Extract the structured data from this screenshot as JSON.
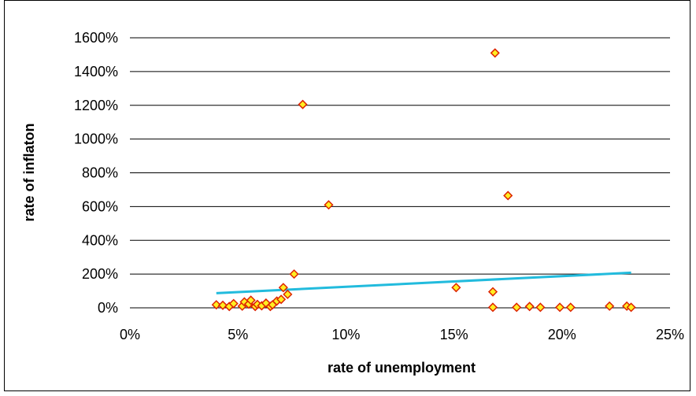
{
  "chart_data": {
    "type": "scatter",
    "xlabel": "rate of unemployment",
    "ylabel": "rate of inflaton",
    "xlim": [
      0,
      25
    ],
    "ylim": [
      0,
      1600
    ],
    "x_ticks": [
      0,
      5,
      10,
      15,
      20,
      25
    ],
    "x_tick_labels": [
      "0%",
      "5%",
      "10%",
      "15%",
      "20%",
      "25%"
    ],
    "y_ticks": [
      0,
      200,
      400,
      600,
      800,
      1000,
      1200,
      1400,
      1600
    ],
    "y_tick_labels": [
      "0%",
      "200%",
      "400%",
      "600%",
      "800%",
      "1000%",
      "1200%",
      "1400%",
      "1600%"
    ],
    "grid": "horizontal",
    "points": [
      {
        "x": 4.0,
        "y": 18
      },
      {
        "x": 4.3,
        "y": 15
      },
      {
        "x": 4.6,
        "y": 8
      },
      {
        "x": 4.8,
        "y": 25
      },
      {
        "x": 5.2,
        "y": 10
      },
      {
        "x": 5.3,
        "y": 35
      },
      {
        "x": 5.5,
        "y": 22
      },
      {
        "x": 5.6,
        "y": 45
      },
      {
        "x": 5.8,
        "y": 8
      },
      {
        "x": 5.9,
        "y": 20
      },
      {
        "x": 6.1,
        "y": 12
      },
      {
        "x": 6.3,
        "y": 28
      },
      {
        "x": 6.5,
        "y": 8
      },
      {
        "x": 6.6,
        "y": 18
      },
      {
        "x": 6.8,
        "y": 40
      },
      {
        "x": 7.0,
        "y": 50
      },
      {
        "x": 7.1,
        "y": 120
      },
      {
        "x": 7.3,
        "y": 80
      },
      {
        "x": 7.6,
        "y": 200
      },
      {
        "x": 8.0,
        "y": 1205
      },
      {
        "x": 9.2,
        "y": 610
      },
      {
        "x": 15.1,
        "y": 120
      },
      {
        "x": 16.8,
        "y": 95
      },
      {
        "x": 16.8,
        "y": 3
      },
      {
        "x": 16.9,
        "y": 1510
      },
      {
        "x": 17.5,
        "y": 665
      },
      {
        "x": 17.9,
        "y": 3
      },
      {
        "x": 18.5,
        "y": 8
      },
      {
        "x": 19.0,
        "y": 3
      },
      {
        "x": 19.9,
        "y": 3
      },
      {
        "x": 20.4,
        "y": 3
      },
      {
        "x": 22.2,
        "y": 10
      },
      {
        "x": 23.0,
        "y": 10
      },
      {
        "x": 23.2,
        "y": 3
      }
    ],
    "trendline": {
      "x": [
        4.0,
        23.2
      ],
      "y": [
        87,
        208
      ]
    },
    "colors": {
      "marker_fill": "#ffee22",
      "marker_stroke": "#dd2200",
      "trendline": "#22bbdd",
      "gridline": "#000000"
    }
  }
}
